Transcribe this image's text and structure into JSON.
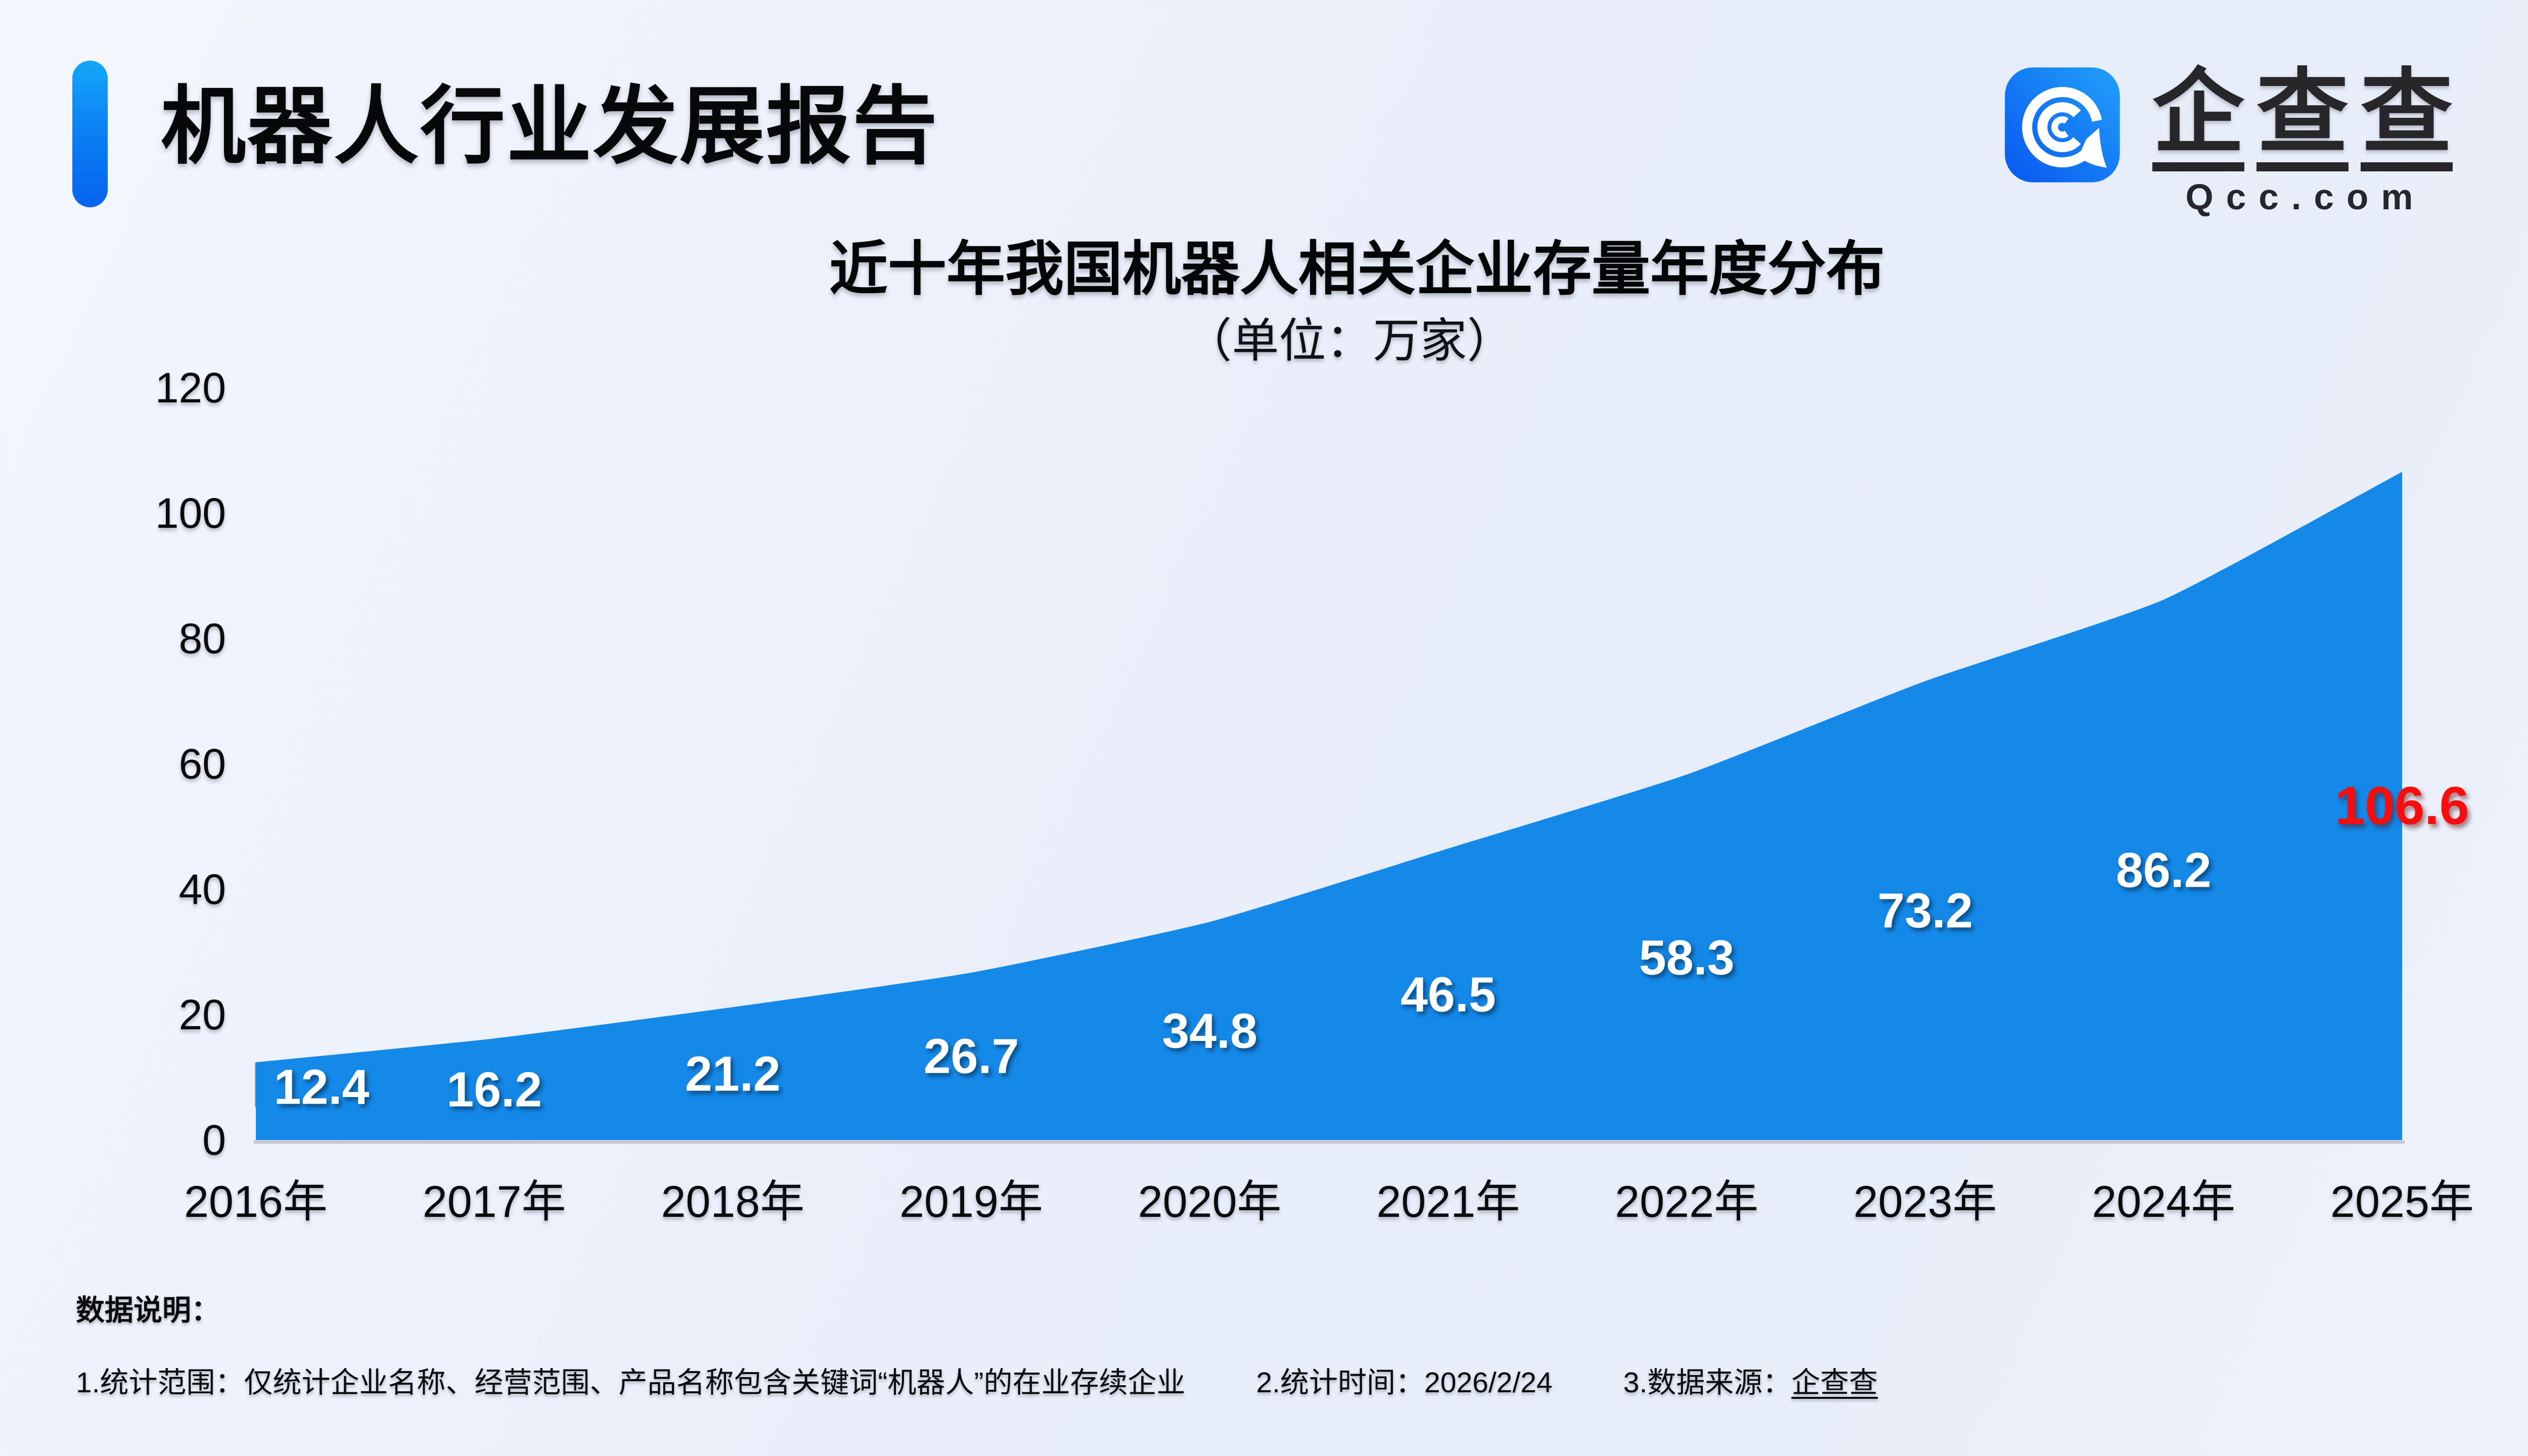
{
  "header": {
    "report_title": "机器人行业发展报告",
    "logo": {
      "brand": "企查查",
      "brand_chars": [
        "企",
        "查",
        "查"
      ],
      "domain": "Qcc.com",
      "icon_gradient": [
        "#0857ef",
        "#21a0fa"
      ]
    },
    "accent_color": "#0b76f2"
  },
  "chart_data": {
    "type": "area",
    "title": "近十年我国机器人相关企业存量年度分布",
    "subtitle": "（单位：万家）",
    "unit": "万家",
    "categories": [
      "2016年",
      "2017年",
      "2018年",
      "2019年",
      "2020年",
      "2021年",
      "2022年",
      "2023年",
      "2024年",
      "2025年"
    ],
    "values": [
      12.4,
      16.2,
      21.2,
      26.7,
      34.8,
      46.5,
      58.3,
      73.2,
      86.2,
      106.6
    ],
    "y_ticks": [
      0,
      20,
      40,
      60,
      80,
      100,
      120
    ],
    "ylim": [
      0,
      120
    ],
    "xlabel": "",
    "ylabel": "",
    "grid": false,
    "legend": false,
    "area_color": "#1489ea",
    "value_label_color": "#ffffff",
    "final_value_label_color": "#f70d0d",
    "axis_line_color": "#c7c9cf",
    "origin_mark_color": "#9aa0a8"
  },
  "notes": {
    "heading": "数据说明：",
    "items": [
      {
        "text": "1.统计范围：仅统计企业名称、经营范围、产品名称包含关键词“机器人”的在业存续企业",
        "brand": ""
      },
      {
        "text": "2.统计时间：2026/2/24",
        "brand": ""
      },
      {
        "text": "3.数据来源：",
        "brand": "企查查"
      }
    ]
  }
}
